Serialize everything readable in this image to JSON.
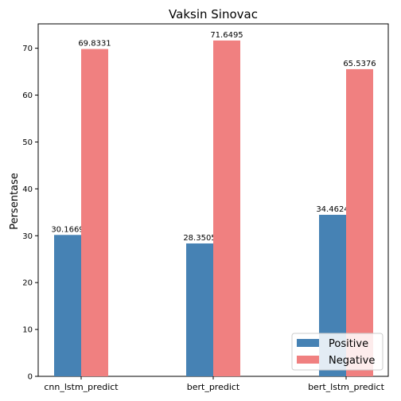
{
  "chart_data": {
    "type": "bar",
    "title": "Vaksin Sinovac",
    "xlabel": "",
    "ylabel": "Persentase",
    "categories": [
      "cnn_lstm_predict",
      "bert_predict",
      "bert_lstm_predict"
    ],
    "series": [
      {
        "name": "Positive",
        "color": "#4682b4",
        "values": [
          30.1669,
          28.3505,
          34.4624
        ]
      },
      {
        "name": "Negative",
        "color": "#f08080",
        "values": [
          69.8331,
          71.6495,
          65.5376
        ]
      }
    ],
    "ylim": [
      0,
      75.2
    ],
    "yticks": [
      0,
      10,
      20,
      30,
      40,
      50,
      60,
      70
    ],
    "grid": false,
    "legend_position": "lower-right"
  }
}
